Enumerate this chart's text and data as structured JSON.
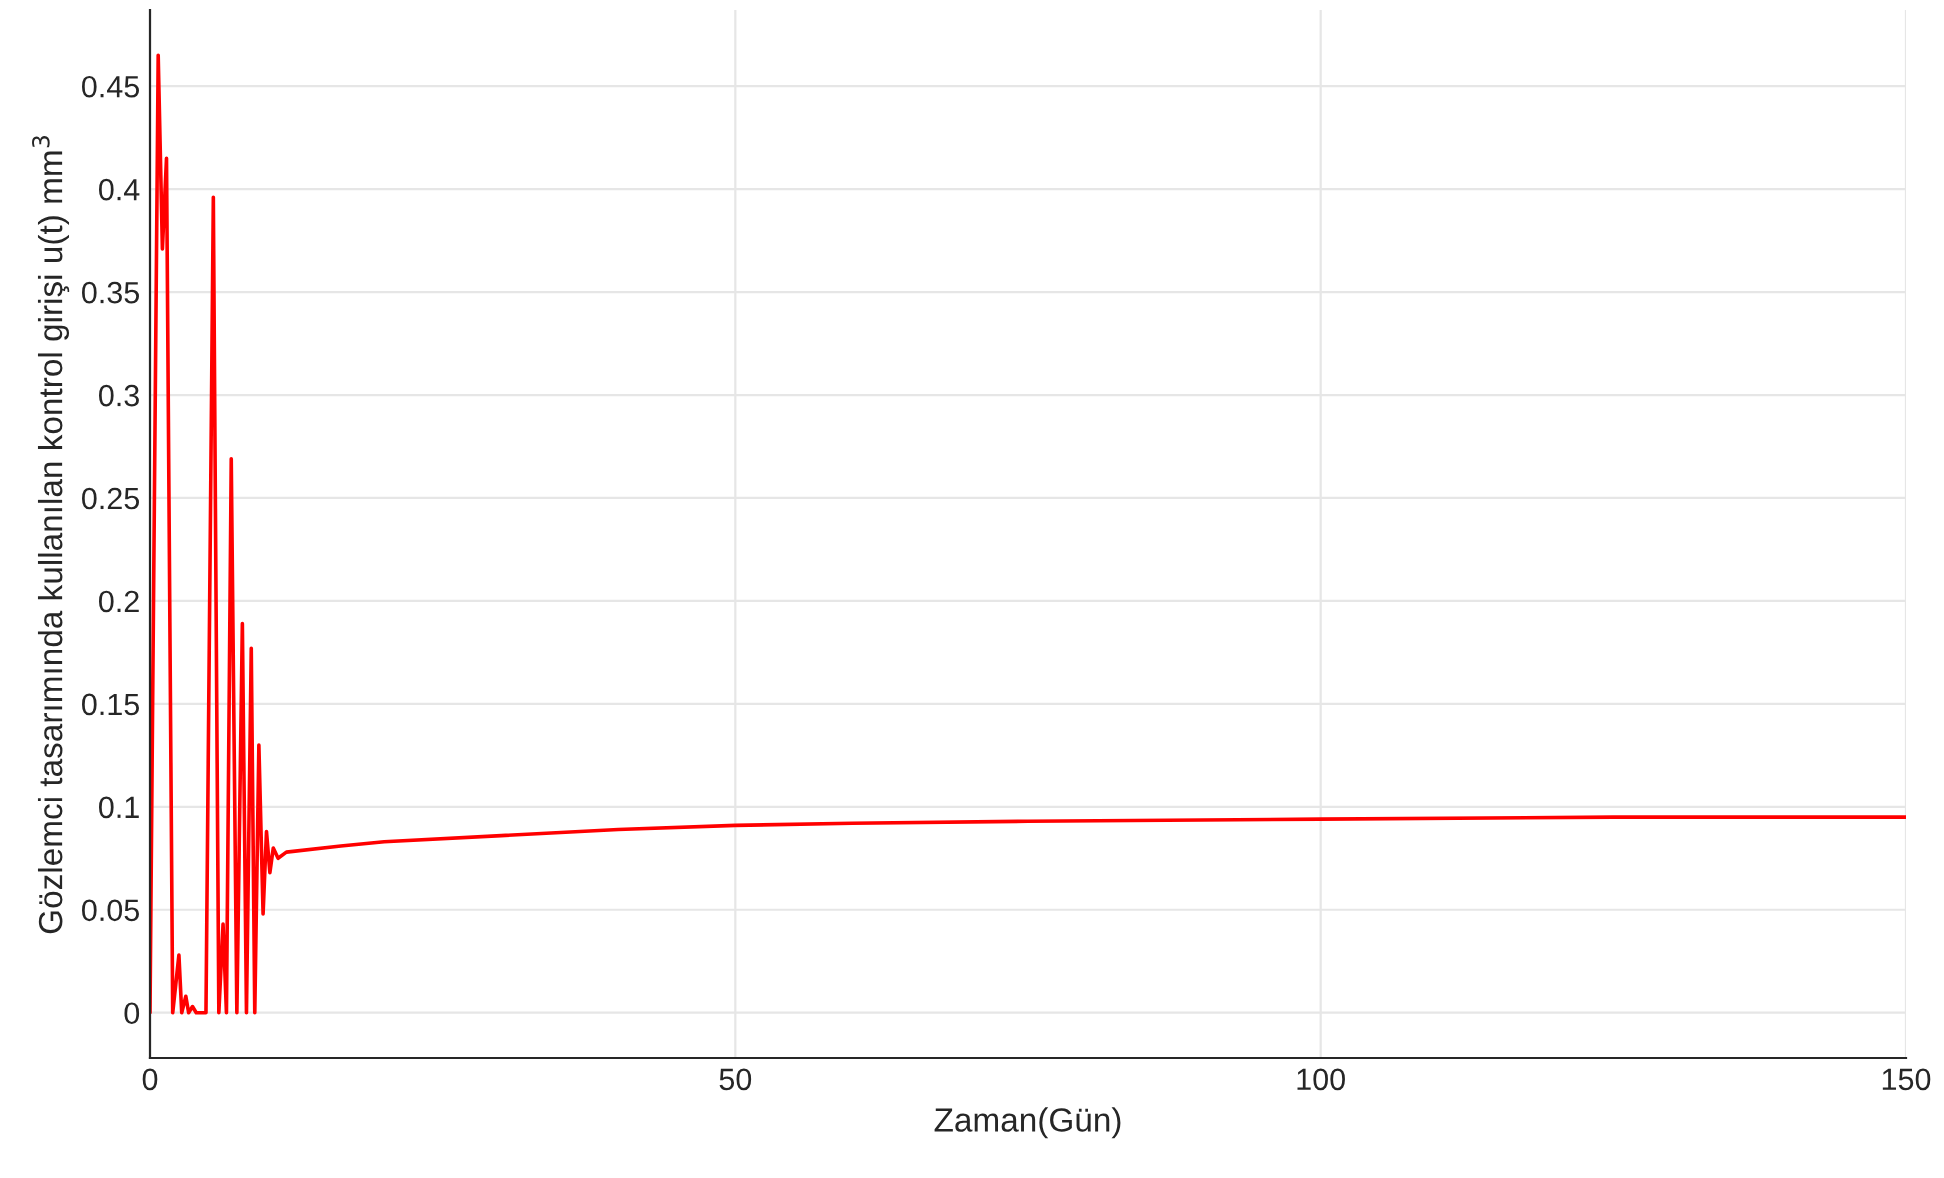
{
  "chart_data": {
    "type": "line",
    "xlabel": "Zaman(Gün)",
    "ylabel": "Gözlemci tasarımında kullanılan kontrol girişi u(t) mm$^{3}$",
    "series": [
      {
        "color": "#ff0000",
        "x": [
          0,
          0.7,
          1.06,
          1.41,
          1.94,
          2.47,
          2.71,
          3.06,
          3.3,
          3.63,
          3.95,
          4.78,
          5.41,
          5.88,
          6.24,
          6.53,
          6.94,
          7.42,
          7.89,
          8.24,
          8.65,
          8.95,
          9.3,
          9.66,
          9.95,
          10.24,
          10.53,
          10.94,
          11.65,
          16.3,
          20,
          30,
          40,
          50,
          60,
          75,
          100,
          125,
          150
        ],
        "values": [
          0,
          0.465,
          0.371,
          0.415,
          0,
          0.028,
          0,
          0.008,
          0,
          0.003,
          0,
          0,
          0.396,
          0,
          0.043,
          0,
          0.269,
          0,
          0.189,
          0,
          0.177,
          0,
          0.13,
          0.048,
          0.088,
          0.068,
          0.08,
          0.075,
          0.078,
          0.081,
          0.083,
          0.086,
          0.089,
          0.091,
          0.092,
          0.093,
          0.094,
          0.095,
          0.095
        ]
      }
    ],
    "xlim": [
      0,
      150
    ],
    "xticks": [
      0,
      50,
      100,
      150
    ],
    "ylim": [
      -0.022,
      0.487
    ],
    "yticks": [
      0,
      0.05,
      0.1,
      0.15,
      0.2,
      0.25,
      0.3,
      0.35,
      0.4,
      0.45
    ],
    "grid": true,
    "marker": "none",
    "line_style": "solid"
  }
}
